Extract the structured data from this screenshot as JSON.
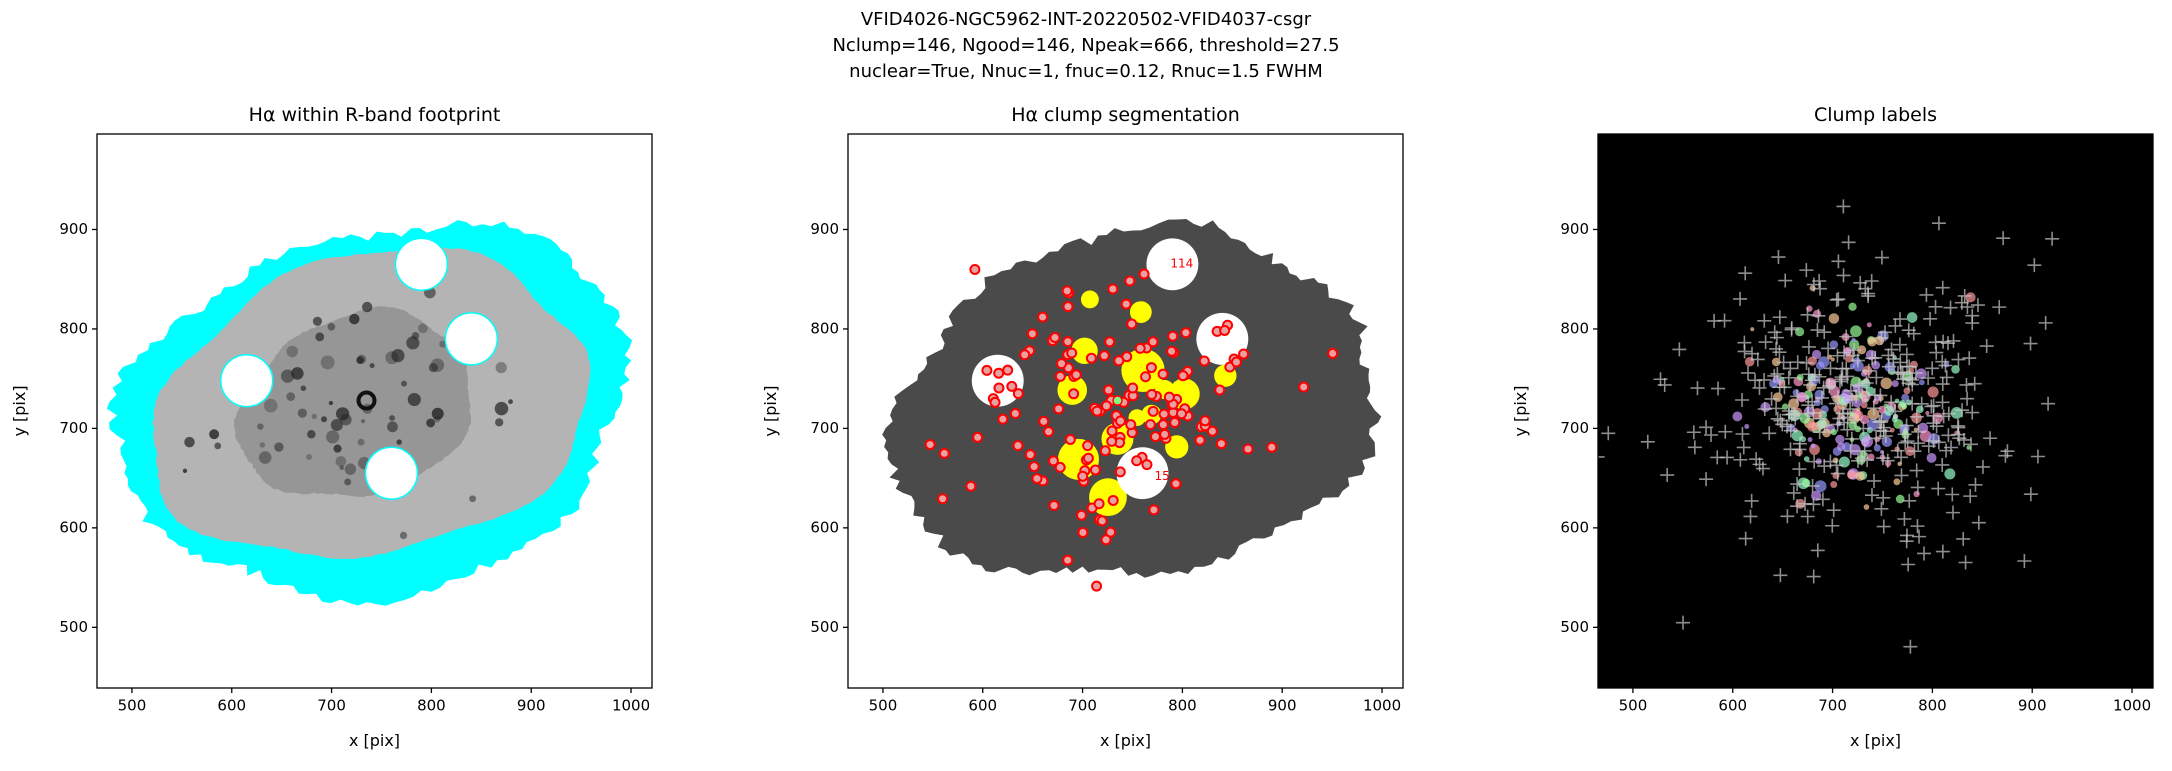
{
  "title": [
    "VFID4026-NGC5962-INT-20220502-VFID4037-csgr",
    "Nclump=146, Ngood=146, Npeak=666, threshold=27.5",
    "nuclear=True, Nnuc=1, fnuc=0.12, Rnuc=1.5 FWHM"
  ],
  "chart_data": [
    {
      "type": "image",
      "title": "Hα within R-band footprint",
      "xlabel": "x [pix]",
      "ylabel": "y [pix]",
      "xlim": [
        465,
        1021
      ],
      "ylim": [
        439,
        996
      ],
      "xticks": [
        500,
        600,
        700,
        800,
        900,
        1000
      ],
      "yticks": [
        500,
        600,
        700,
        800,
        900
      ]
    },
    {
      "type": "image",
      "title": "Hα clump segmentation",
      "xlabel": "x [pix]",
      "ylabel": "y [pix]",
      "xlim": [
        465,
        1021
      ],
      "ylim": [
        439,
        996
      ],
      "xticks": [
        500,
        600,
        700,
        800,
        900,
        1000
      ],
      "yticks": [
        500,
        600,
        700,
        800,
        900
      ],
      "annotations": [
        {
          "text": "114",
          "x": 788,
          "y": 862
        },
        {
          "text": "15",
          "x": 772,
          "y": 648
        }
      ]
    },
    {
      "type": "image",
      "title": "Clump labels",
      "xlabel": "x [pix]",
      "ylabel": "y [pix]",
      "xlim": [
        465,
        1021
      ],
      "ylim": [
        439,
        996
      ],
      "xticks": [
        500,
        600,
        700,
        800,
        900,
        1000
      ],
      "yticks": [
        500,
        600,
        700,
        800,
        900
      ]
    }
  ]
}
